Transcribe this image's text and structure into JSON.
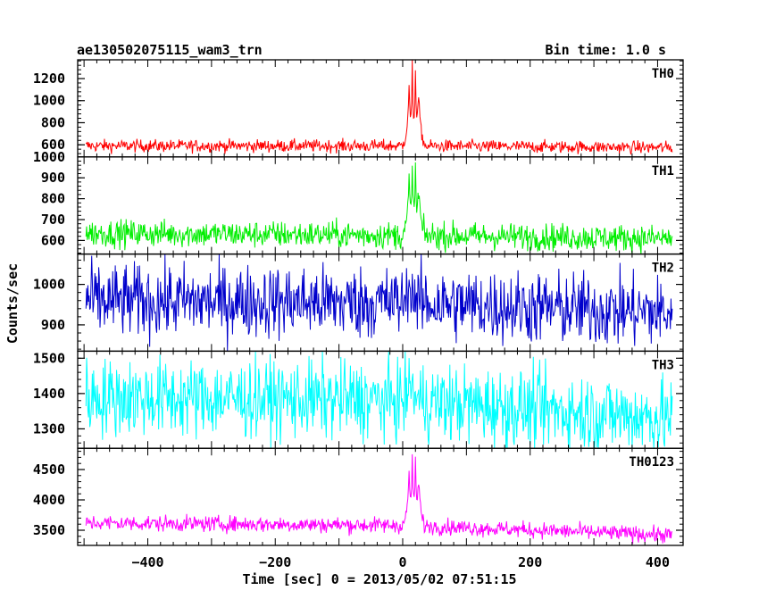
{
  "chart_data": {
    "type": "line",
    "title": "ae130502075115_wam3_trn",
    "subtitle": "Bin time: 1.0 s",
    "xlabel": "Time [sec] 0 = 2013/05/02 07:51:15",
    "ylabel": "Counts/sec",
    "xlim": [
      -510,
      440
    ],
    "x_ticks": [
      -400,
      -200,
      0,
      200,
      400
    ],
    "x_range": [
      -497,
      423
    ],
    "panels": [
      {
        "name": "TH0",
        "color": "#ff0000",
        "ylim": [
          490,
          1370
        ],
        "y_ticks": [
          600,
          800,
          1000,
          1200
        ],
        "baseline": [
          [
            -497,
            590
          ],
          [
            0,
            590
          ],
          [
            423,
            575
          ]
        ],
        "noise": 28,
        "peaks": [
          [
            10,
            1150
          ],
          [
            15,
            1350
          ],
          [
            20,
            1300
          ],
          [
            25,
            1000
          ]
        ]
      },
      {
        "name": "TH1",
        "color": "#00ee00",
        "ylim": [
          535,
          1000
        ],
        "y_ticks": [
          600,
          700,
          800,
          900,
          1000
        ],
        "baseline": [
          [
            -497,
            635
          ],
          [
            0,
            625
          ],
          [
            423,
            610
          ]
        ],
        "noise": 32,
        "peaks": [
          [
            10,
            900
          ],
          [
            15,
            1000
          ],
          [
            20,
            960
          ],
          [
            25,
            800
          ]
        ]
      },
      {
        "name": "TH2",
        "color": "#0000cc",
        "ylim": [
          835,
          1075
        ],
        "y_ticks": [
          900,
          1000
        ],
        "baseline": [
          [
            -497,
            960
          ],
          [
            0,
            955
          ],
          [
            423,
            930
          ]
        ],
        "noise": 45,
        "peaks": [
          [
            10,
            1000
          ],
          [
            15,
            1020
          ]
        ]
      },
      {
        "name": "TH3",
        "color": "#00ffff",
        "ylim": [
          1245,
          1520
        ],
        "y_ticks": [
          1300,
          1400,
          1500
        ],
        "baseline": [
          [
            -497,
            1390
          ],
          [
            0,
            1380
          ],
          [
            423,
            1330
          ]
        ],
        "noise": 55,
        "peaks": [
          [
            10,
            1440
          ],
          [
            15,
            1460
          ]
        ]
      },
      {
        "name": "TH0123",
        "color": "#ff00ff",
        "ylim": [
          3250,
          4850
        ],
        "y_ticks": [
          3500,
          4000,
          4500
        ],
        "baseline": [
          [
            -497,
            3620
          ],
          [
            0,
            3580
          ],
          [
            423,
            3420
          ]
        ],
        "noise": 65,
        "peaks": [
          [
            10,
            4500
          ],
          [
            15,
            4800
          ],
          [
            20,
            4700
          ],
          [
            25,
            4200
          ]
        ]
      }
    ]
  }
}
